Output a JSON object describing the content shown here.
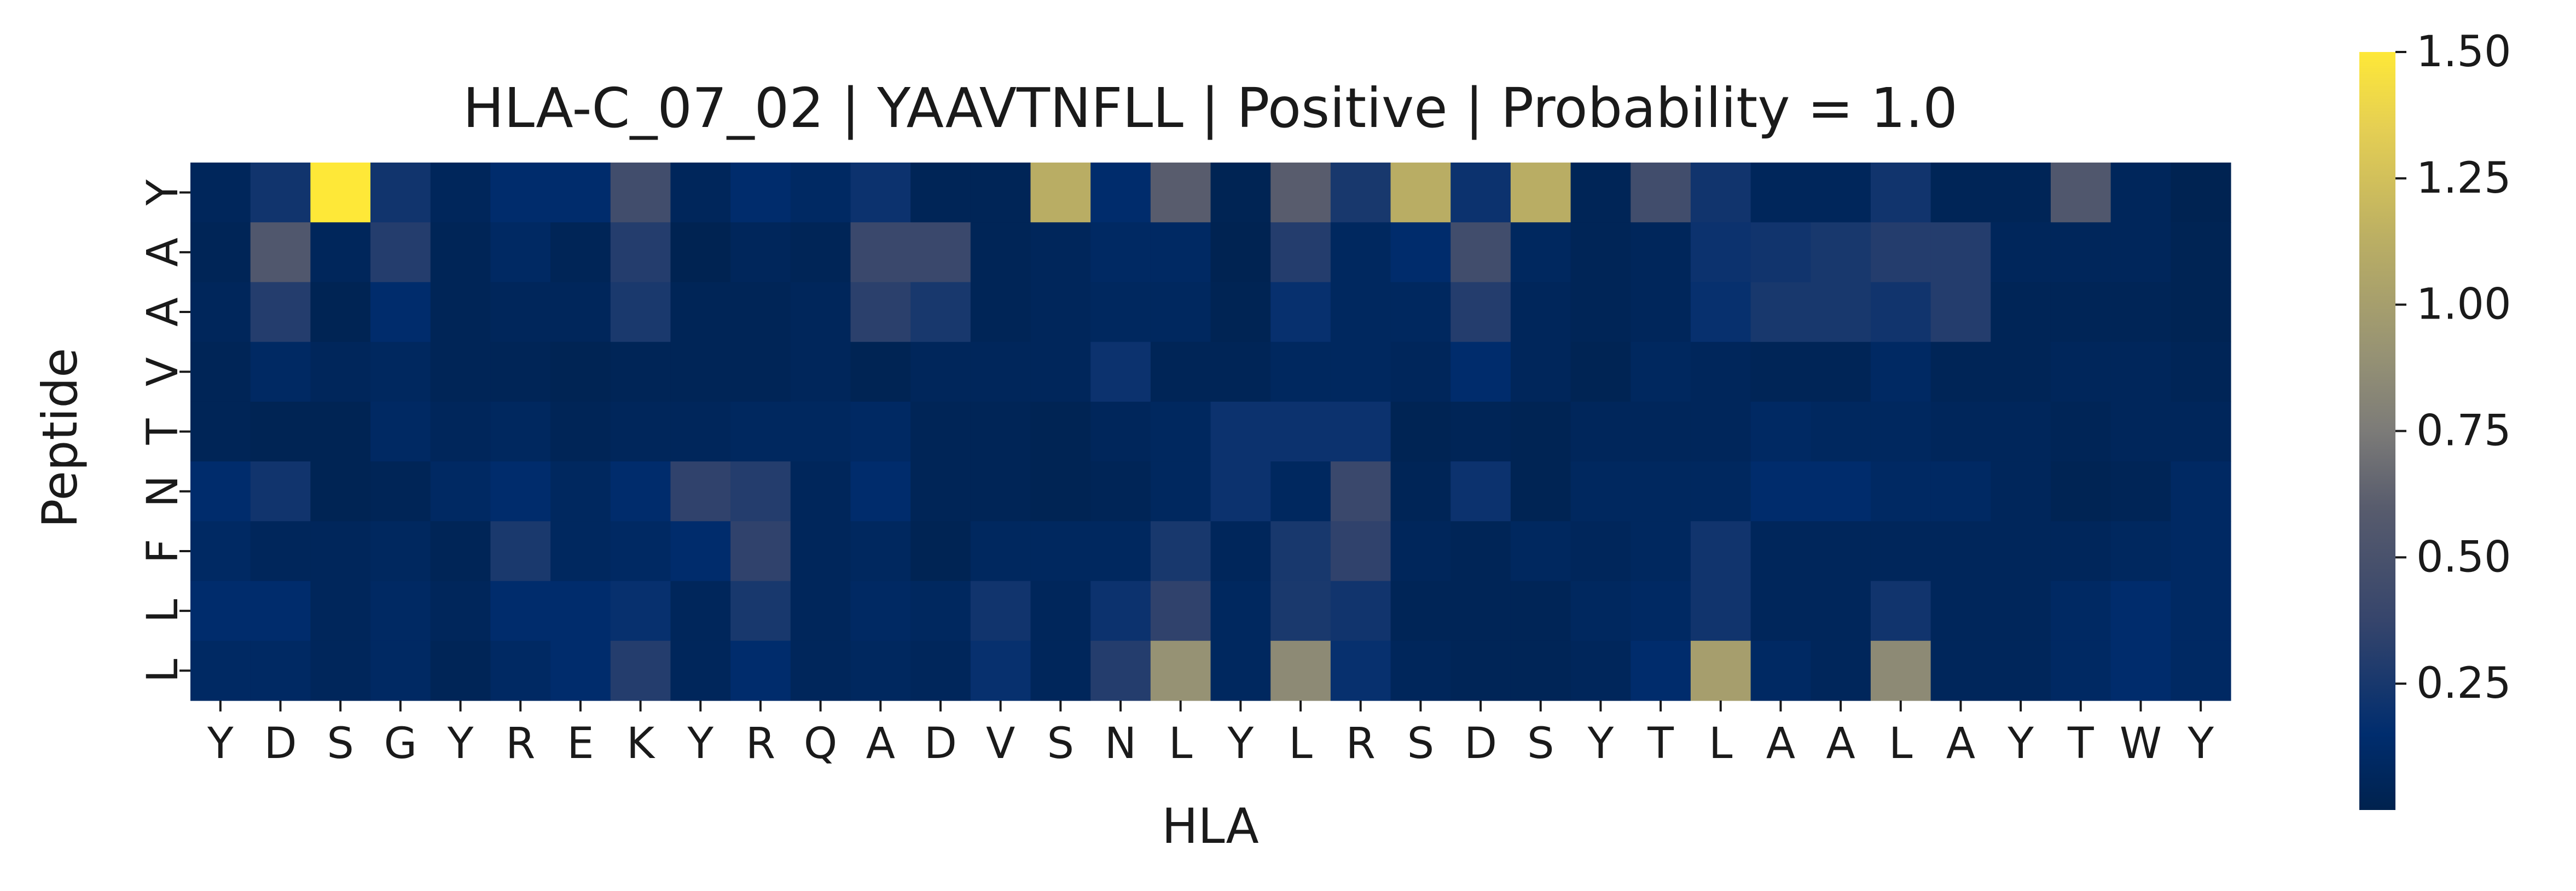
{
  "chart_data": {
    "type": "heatmap",
    "title": "HLA-C_07_02 | YAAVTNFLL | Positive | Probability = 1.0",
    "xlabel": "HLA",
    "ylabel": "Peptide",
    "x_labels": [
      "Y",
      "D",
      "S",
      "G",
      "Y",
      "R",
      "E",
      "K",
      "Y",
      "R",
      "Q",
      "A",
      "D",
      "V",
      "S",
      "N",
      "L",
      "Y",
      "L",
      "R",
      "S",
      "D",
      "S",
      "Y",
      "T",
      "L",
      "A",
      "A",
      "L",
      "A",
      "Y",
      "T",
      "W",
      "Y"
    ],
    "y_labels": [
      "Y",
      "A",
      "A",
      "V",
      "T",
      "N",
      "F",
      "L",
      "L"
    ],
    "colormap": "cividis",
    "colorbar": {
      "vmin": 0.0,
      "vmax": 1.5,
      "ticks": [
        0.25,
        0.5,
        0.75,
        1.0,
        1.25,
        1.5
      ],
      "tick_labels": [
        "0.25",
        "0.50",
        "0.75",
        "1.00",
        "1.25",
        "1.50"
      ]
    },
    "values": [
      [
        0.06,
        0.22,
        1.5,
        0.22,
        0.06,
        0.14,
        0.14,
        0.45,
        0.06,
        0.14,
        0.1,
        0.2,
        0.04,
        0.04,
        1.12,
        0.14,
        0.6,
        0.03,
        0.6,
        0.25,
        1.12,
        0.2,
        1.12,
        0.04,
        0.45,
        0.22,
        0.06,
        0.06,
        0.22,
        0.04,
        0.04,
        0.55,
        0.06,
        0.02
      ],
      [
        0.04,
        0.55,
        0.06,
        0.3,
        0.04,
        0.1,
        0.04,
        0.3,
        0.02,
        0.06,
        0.04,
        0.4,
        0.4,
        0.04,
        0.06,
        0.1,
        0.1,
        0.02,
        0.3,
        0.08,
        0.14,
        0.45,
        0.08,
        0.04,
        0.06,
        0.2,
        0.22,
        0.25,
        0.3,
        0.3,
        0.06,
        0.06,
        0.06,
        0.03
      ],
      [
        0.06,
        0.3,
        0.03,
        0.14,
        0.04,
        0.06,
        0.06,
        0.26,
        0.04,
        0.04,
        0.06,
        0.33,
        0.25,
        0.04,
        0.06,
        0.08,
        0.08,
        0.03,
        0.18,
        0.08,
        0.08,
        0.3,
        0.06,
        0.04,
        0.06,
        0.18,
        0.25,
        0.25,
        0.22,
        0.3,
        0.04,
        0.04,
        0.04,
        0.03
      ],
      [
        0.04,
        0.1,
        0.06,
        0.08,
        0.04,
        0.04,
        0.03,
        0.04,
        0.04,
        0.04,
        0.06,
        0.03,
        0.06,
        0.06,
        0.06,
        0.2,
        0.04,
        0.04,
        0.08,
        0.08,
        0.06,
        0.14,
        0.06,
        0.03,
        0.08,
        0.06,
        0.04,
        0.04,
        0.1,
        0.04,
        0.04,
        0.06,
        0.06,
        0.04
      ],
      [
        0.04,
        0.03,
        0.03,
        0.1,
        0.06,
        0.08,
        0.04,
        0.06,
        0.06,
        0.08,
        0.08,
        0.1,
        0.04,
        0.04,
        0.03,
        0.06,
        0.08,
        0.2,
        0.2,
        0.2,
        0.03,
        0.04,
        0.03,
        0.06,
        0.06,
        0.06,
        0.1,
        0.08,
        0.08,
        0.06,
        0.06,
        0.04,
        0.06,
        0.06
      ],
      [
        0.14,
        0.22,
        0.03,
        0.04,
        0.1,
        0.14,
        0.08,
        0.14,
        0.35,
        0.3,
        0.06,
        0.14,
        0.04,
        0.04,
        0.03,
        0.04,
        0.08,
        0.2,
        0.08,
        0.4,
        0.04,
        0.2,
        0.03,
        0.08,
        0.08,
        0.08,
        0.14,
        0.14,
        0.1,
        0.1,
        0.06,
        0.03,
        0.04,
        0.1
      ],
      [
        0.1,
        0.06,
        0.06,
        0.08,
        0.04,
        0.26,
        0.08,
        0.1,
        0.14,
        0.35,
        0.06,
        0.08,
        0.03,
        0.08,
        0.08,
        0.08,
        0.25,
        0.06,
        0.25,
        0.35,
        0.06,
        0.04,
        0.08,
        0.06,
        0.08,
        0.22,
        0.06,
        0.06,
        0.06,
        0.06,
        0.06,
        0.06,
        0.08,
        0.1
      ],
      [
        0.14,
        0.14,
        0.06,
        0.1,
        0.06,
        0.14,
        0.14,
        0.18,
        0.06,
        0.25,
        0.06,
        0.1,
        0.08,
        0.22,
        0.06,
        0.2,
        0.35,
        0.08,
        0.26,
        0.22,
        0.04,
        0.04,
        0.04,
        0.08,
        0.1,
        0.22,
        0.06,
        0.06,
        0.22,
        0.06,
        0.06,
        0.1,
        0.14,
        0.1
      ],
      [
        0.1,
        0.1,
        0.06,
        0.1,
        0.04,
        0.1,
        0.14,
        0.3,
        0.06,
        0.14,
        0.06,
        0.08,
        0.06,
        0.18,
        0.06,
        0.3,
        0.9,
        0.08,
        0.85,
        0.18,
        0.06,
        0.04,
        0.04,
        0.06,
        0.14,
        1.0,
        0.1,
        0.06,
        0.85,
        0.06,
        0.06,
        0.1,
        0.14,
        0.1
      ]
    ]
  }
}
